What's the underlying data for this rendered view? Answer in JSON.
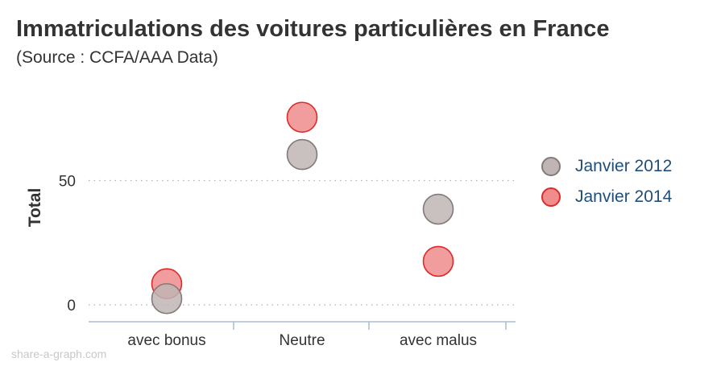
{
  "title": "Immatriculations des voitures particulières en France",
  "subtitle": "(Source : CCFA/AAA Data)",
  "watermark": "share-a-graph.com",
  "colors": {
    "series_2012_fill": "#bfb5b5",
    "series_2012_stroke": "#857979",
    "series_2014_fill": "#f08c8c",
    "series_2014_stroke": "#dd2b2b",
    "axis": "#a9bcd4",
    "grid": "#b0b0b0"
  },
  "chart_data": {
    "type": "scatter",
    "title": "Immatriculations des voitures particulières en France",
    "subtitle": "(Source : CCFA/AAA Data)",
    "xlabel": "",
    "ylabel": "Total",
    "categories": [
      "avec bonus",
      "Neutre",
      "avec malus"
    ],
    "y_ticks": [
      0,
      50
    ],
    "ylim": [
      -7,
      85
    ],
    "grid": "horizontal dotted",
    "legend_position": "right",
    "series": [
      {
        "name": "Janvier 2012",
        "values": [
          2.5,
          60.5,
          38.5
        ]
      },
      {
        "name": "Janvier 2014",
        "values": [
          8.5,
          75.5,
          17.5
        ]
      }
    ]
  }
}
